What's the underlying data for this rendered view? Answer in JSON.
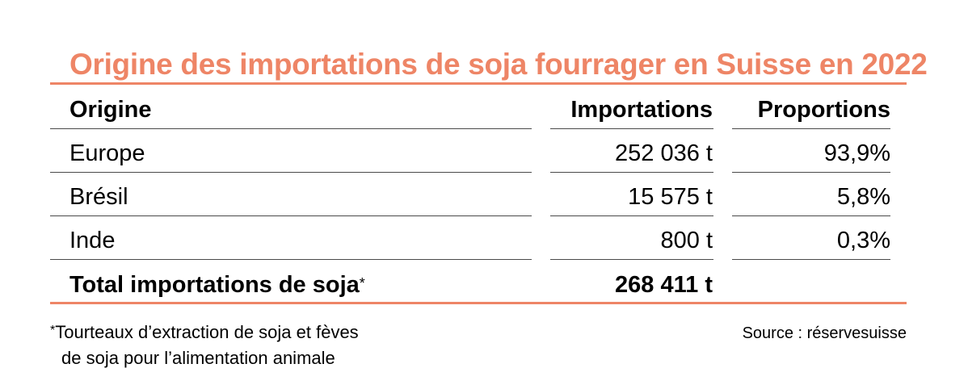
{
  "title": "Origine des importations de soja fourrager en Suisse en 2022",
  "table": {
    "headers": {
      "origin": "Origine",
      "imports": "Importations",
      "share": "Proportions"
    },
    "rows": [
      {
        "origin": "Europe",
        "imports": "252 036 t",
        "share": "93,9%"
      },
      {
        "origin": "Brésil",
        "imports": "15 575 t",
        "share": "5,8%"
      },
      {
        "origin": "Inde",
        "imports": "800 t",
        "share": "0,3%"
      }
    ],
    "total": {
      "label": "Total importations de soja",
      "marker": "*",
      "imports": "268 411 t"
    }
  },
  "footnote": {
    "marker": "*",
    "line1": "Tourteaux d’extraction de soja et fèves",
    "line2": "de soja pour l’alimentation animale"
  },
  "source": "Source : réservesuisse",
  "colors": {
    "accent": "#ee8566",
    "text": "#000000",
    "rule": "#4a4a4a"
  }
}
